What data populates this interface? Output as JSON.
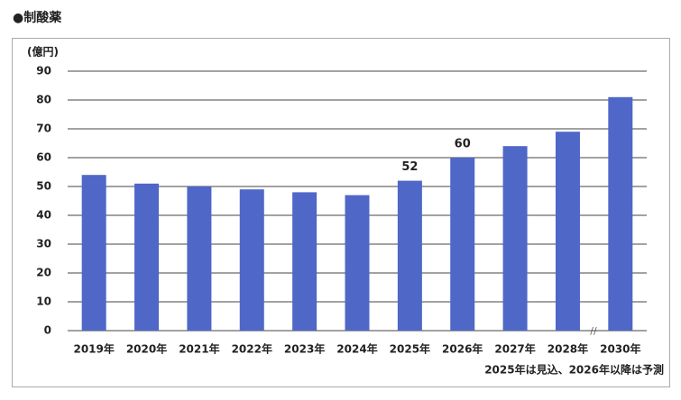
{
  "chart_data": {
    "type": "bar",
    "title": "●制酸薬",
    "y_label": "(億円)",
    "note": "2025年は見込、2026年以降は予測",
    "axis_break_label": "//",
    "categories": [
      "2019年",
      "2020年",
      "2021年",
      "2022年",
      "2023年",
      "2024年",
      "2025年",
      "2026年",
      "2027年",
      "2028年",
      "2030年"
    ],
    "values": [
      54,
      51,
      50,
      49,
      48,
      47,
      52,
      60,
      64,
      69,
      81
    ],
    "value_labels": [
      null,
      null,
      null,
      null,
      null,
      null,
      "52",
      "60",
      null,
      null,
      null
    ],
    "color": "#4f67c7",
    "ylim": [
      0,
      90
    ],
    "yticks": [
      0,
      10,
      20,
      30,
      40,
      50,
      60,
      70,
      80,
      90
    ],
    "grid": true
  }
}
